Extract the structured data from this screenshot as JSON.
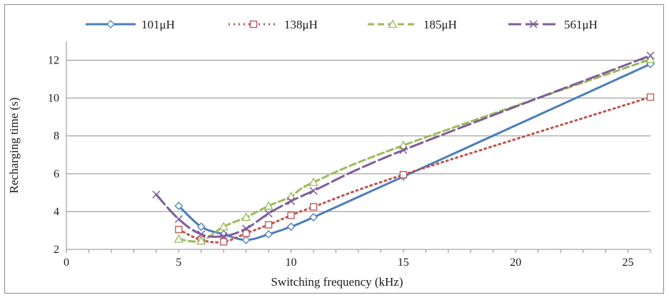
{
  "chart_data": {
    "type": "line",
    "xlabel": "Switching frequency (kHz)",
    "ylabel": "Recharging time (s)",
    "xlim": [
      0,
      26
    ],
    "ylim": [
      2,
      13
    ],
    "x_ticks": [
      0,
      5,
      10,
      15,
      20,
      25
    ],
    "y_ticks": [
      2,
      4,
      6,
      8,
      10,
      12
    ],
    "grid": "horizontal",
    "legend_position": "top",
    "series": [
      {
        "name": "101μH",
        "color": "#4a7ebb",
        "dash": "solid",
        "marker": "diamond",
        "points": [
          [
            5,
            4.3
          ],
          [
            6,
            3.2
          ],
          [
            7,
            2.8
          ],
          [
            8,
            2.5
          ],
          [
            9,
            2.8
          ],
          [
            10,
            3.2
          ],
          [
            11,
            3.7
          ],
          [
            15,
            5.85
          ],
          [
            26,
            11.8
          ]
        ]
      },
      {
        "name": "138μH",
        "color": "#c0504d",
        "dash": "dot",
        "marker": "square",
        "points": [
          [
            5,
            3.05
          ],
          [
            6,
            2.5
          ],
          [
            7,
            2.4
          ],
          [
            8,
            2.85
          ],
          [
            9,
            3.3
          ],
          [
            10,
            3.8
          ],
          [
            11,
            4.25
          ],
          [
            15,
            5.95
          ],
          [
            26,
            10.05
          ]
        ]
      },
      {
        "name": "185μH",
        "color": "#9bbb59",
        "dash": "dash",
        "marker": "triangle",
        "points": [
          [
            5,
            2.55
          ],
          [
            6,
            2.45
          ],
          [
            7,
            3.2
          ],
          [
            8,
            3.7
          ],
          [
            9,
            4.3
          ],
          [
            10,
            4.8
          ],
          [
            11,
            5.55
          ],
          [
            15,
            7.5
          ],
          [
            26,
            12.05
          ]
        ]
      },
      {
        "name": "561μH",
        "color": "#7e5c9a",
        "dash": "longdash",
        "marker": "x",
        "points": [
          [
            4,
            4.9
          ],
          [
            5,
            3.6
          ],
          [
            6,
            2.8
          ],
          [
            7,
            2.7
          ],
          [
            8,
            3.1
          ],
          [
            9,
            3.9
          ],
          [
            10,
            4.55
          ],
          [
            11,
            5.1
          ],
          [
            15,
            7.25
          ],
          [
            26,
            12.25
          ]
        ]
      }
    ]
  }
}
